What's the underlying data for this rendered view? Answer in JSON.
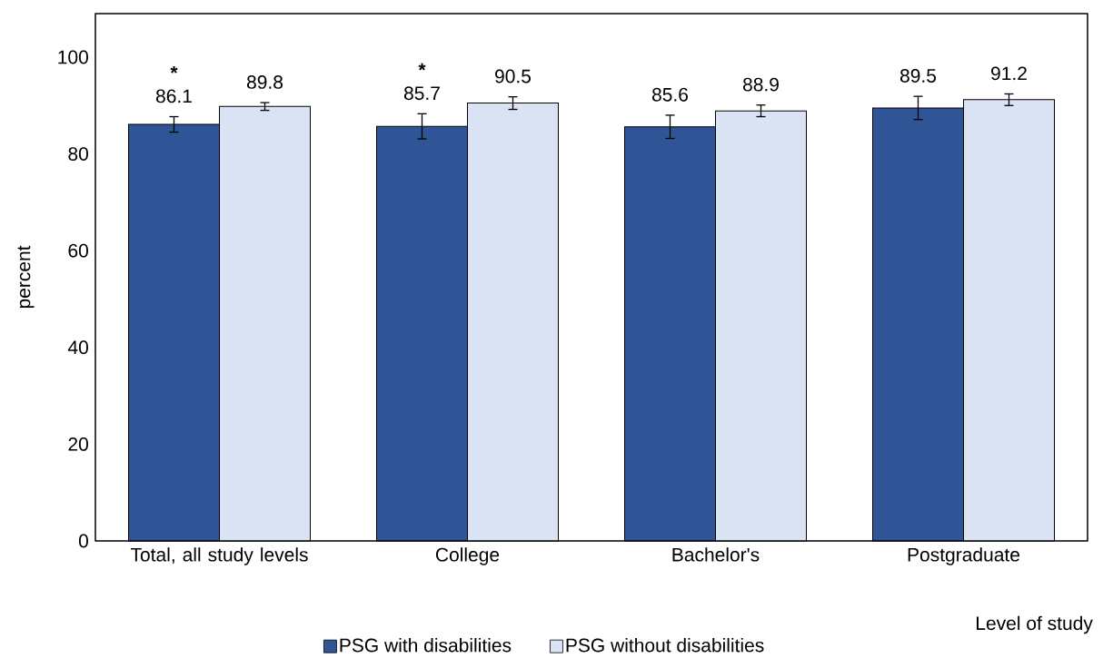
{
  "chart_data": {
    "type": "bar",
    "ylabel": "percent",
    "xlabel": "Level of study",
    "categories": [
      "Total, all study levels",
      "College",
      "Bachelor's",
      "Postgraduate"
    ],
    "series": [
      {
        "name": "PSG with disabilities",
        "color": "#2f5597",
        "values": [
          86.1,
          85.7,
          85.6,
          89.5
        ],
        "errors": [
          1.6,
          2.6,
          2.4,
          2.4
        ]
      },
      {
        "name": "PSG without disabilities",
        "color": "#dae3f3",
        "values": [
          89.8,
          90.5,
          88.9,
          91.2
        ],
        "errors": [
          0.8,
          1.3,
          1.2,
          1.2
        ]
      }
    ],
    "ylim": [
      0,
      109
    ],
    "yticks": [
      0,
      20,
      40,
      60,
      80,
      100
    ],
    "data_labels": true,
    "grid": false,
    "legend": "bottom",
    "annotations": [
      "*",
      "*"
    ]
  }
}
